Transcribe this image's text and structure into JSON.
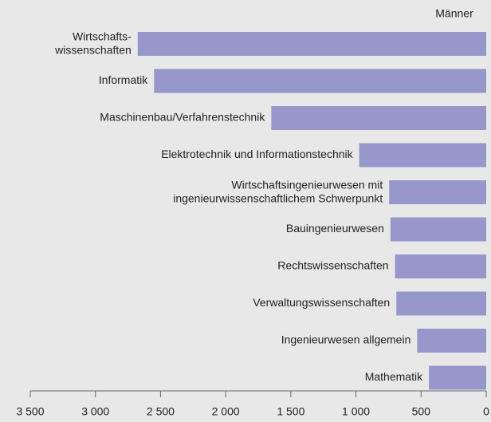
{
  "chart_data": {
    "type": "hbar",
    "categories": [
      "Wirtschafts-\nwissenschaften",
      "Informatik",
      "Maschinenbau/Verfahrenstechnik",
      "Elektrotechnik und Informationstechnik",
      "Wirtschaftsingenieurwesen mit\ningenieurwissenschaftlichem Schwerpunkt",
      "Bauingenieurwesen",
      "Rechtswissenschaften",
      "Verwaltungswissenschaften",
      "Ingenieurwesen allgemein",
      "Mathematik"
    ],
    "series": [
      {
        "name": "Männer",
        "color": "#9797cc",
        "values": [
          2675,
          2550,
          1650,
          975,
          745,
          735,
          700,
          690,
          530,
          440
        ]
      }
    ],
    "xlim": [
      3500,
      0
    ],
    "xticks": [
      {
        "value": 3500,
        "label": "3 500"
      },
      {
        "value": 3000,
        "label": "3 000"
      },
      {
        "value": 2500,
        "label": "2 500"
      },
      {
        "value": 2000,
        "label": "2 000"
      },
      {
        "value": 1500,
        "label": "1 500"
      },
      {
        "value": 1000,
        "label": "1 000"
      },
      500,
      0
    ]
  }
}
